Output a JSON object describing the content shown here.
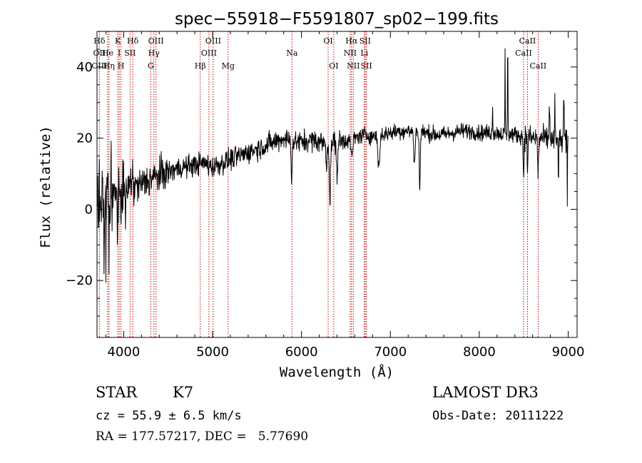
{
  "chart_data": {
    "type": "line",
    "title": "spec−55918−F5591807_sp02−199.fits",
    "xlabel": "Wavelength (Å)",
    "ylabel": "Flux (relative)",
    "xlim": [
      3700,
      9100
    ],
    "ylim": [
      -36,
      50
    ],
    "x_ticks": [
      {
        "value": 4000,
        "label": "4000"
      },
      {
        "value": 5000,
        "label": "5000"
      },
      {
        "value": 6000,
        "label": "6000"
      },
      {
        "value": 7000,
        "label": "7000"
      },
      {
        "value": 8000,
        "label": "8000"
      },
      {
        "value": 9000,
        "label": "9000"
      }
    ],
    "y_ticks": [
      {
        "value": -20,
        "label": "−20"
      },
      {
        "value": 0,
        "label": "0"
      },
      {
        "value": 20,
        "label": "20"
      },
      {
        "value": 40,
        "label": "40"
      }
    ],
    "grid": false,
    "lines": [
      {
        "name": "Hδ",
        "wavelength": 3727,
        "row": 1
      },
      {
        "name": "OII",
        "wavelength": 3727,
        "row": 2
      },
      {
        "name": "OIII",
        "wavelength": 3727,
        "row": 3
      },
      {
        "name": "He",
        "wavelength": 3820,
        "row": 2
      },
      {
        "name": "Hη",
        "wavelength": 3835,
        "row": 3
      },
      {
        "name": "K",
        "wavelength": 3934,
        "row": 1
      },
      {
        "name": "I",
        "wavelength": 3950,
        "row": 2
      },
      {
        "name": "H",
        "wavelength": 3969,
        "row": 3
      },
      {
        "name": "SII",
        "wavelength": 4072,
        "row": 2
      },
      {
        "name": "Hδ",
        "wavelength": 4102,
        "row": 1
      },
      {
        "name": "G",
        "wavelength": 4305,
        "row": 3
      },
      {
        "name": "Hγ",
        "wavelength": 4340,
        "row": 2
      },
      {
        "name": "OIII",
        "wavelength": 4363,
        "row": 1
      },
      {
        "name": "Hβ",
        "wavelength": 4861,
        "row": 3
      },
      {
        "name": "OIII",
        "wavelength": 4959,
        "row": 2
      },
      {
        "name": "OIII",
        "wavelength": 5007,
        "row": 1
      },
      {
        "name": "Mg",
        "wavelength": 5175,
        "row": 3
      },
      {
        "name": "Na",
        "wavelength": 5893,
        "row": 2
      },
      {
        "name": "OI",
        "wavelength": 6300,
        "row": 1
      },
      {
        "name": "OI",
        "wavelength": 6363,
        "row": 3
      },
      {
        "name": "NII",
        "wavelength": 6548,
        "row": 2
      },
      {
        "name": "Hα",
        "wavelength": 6563,
        "row": 1
      },
      {
        "name": "NII",
        "wavelength": 6583,
        "row": 3
      },
      {
        "name": "Li",
        "wavelength": 6707,
        "row": 2
      },
      {
        "name": "SII",
        "wavelength": 6716,
        "row": 1
      },
      {
        "name": "SII",
        "wavelength": 6730,
        "row": 3
      },
      {
        "name": "CaII",
        "wavelength": 8498,
        "row": 2
      },
      {
        "name": "CaII",
        "wavelength": 8542,
        "row": 1
      },
      {
        "name": "CaII",
        "wavelength": 8662,
        "row": 3
      }
    ],
    "spectrum_envelope": {
      "x": [
        3700,
        3800,
        3900,
        4000,
        4100,
        4200,
        4300,
        4400,
        4500,
        4600,
        4700,
        4800,
        4900,
        5000,
        5100,
        5200,
        5300,
        5400,
        5500,
        5600,
        5700,
        5800,
        5900,
        6000,
        6100,
        6200,
        6300,
        6400,
        6500,
        6600,
        6700,
        6800,
        6900,
        7000,
        7100,
        7200,
        7300,
        7400,
        7500,
        7600,
        7700,
        7800,
        7900,
        8000,
        8100,
        8200,
        8300,
        8400,
        8500,
        8600,
        8700,
        8800,
        8900,
        9000
      ],
      "y": [
        2,
        3,
        4,
        5,
        6,
        7,
        8.5,
        9.5,
        10.5,
        11.5,
        12,
        12.5,
        13,
        12,
        13,
        14,
        15,
        16,
        17,
        18,
        19,
        20,
        19,
        19,
        19.5,
        19,
        18.5,
        19,
        19.5,
        20,
        21,
        20.5,
        21,
        21.5,
        22,
        22,
        22,
        21.5,
        21,
        21,
        21.5,
        22,
        22,
        21.5,
        21.5,
        21.5,
        21,
        21,
        20.5,
        20,
        20,
        19.5,
        19,
        19
      ]
    },
    "noise_sigma": [
      {
        "to": 4000,
        "sigma": 6
      },
      {
        "to": 4500,
        "sigma": 3.5
      },
      {
        "to": 6500,
        "sigma": 2.2
      },
      {
        "to": 8500,
        "sigma": 1.6
      },
      {
        "to": 9100,
        "sigma": 2.5
      }
    ],
    "features": [
      {
        "x": 3725,
        "dy": 24,
        "w": 2
      },
      {
        "x": 3780,
        "dy": -28,
        "w": 3
      },
      {
        "x": 3800,
        "dy": -24,
        "w": 2
      },
      {
        "x": 3835,
        "dy": -20,
        "w": 3
      },
      {
        "x": 3860,
        "dy": 18,
        "w": 3
      },
      {
        "x": 3870,
        "dy": -14,
        "w": 3
      },
      {
        "x": 3930,
        "dy": -12,
        "w": 3
      },
      {
        "x": 3970,
        "dy": -10,
        "w": 3
      },
      {
        "x": 4020,
        "dy": -12,
        "w": 3
      },
      {
        "x": 4100,
        "dy": 8,
        "w": 3
      },
      {
        "x": 5890,
        "dy": -10,
        "w": 8
      },
      {
        "x": 6280,
        "dy": -6,
        "w": 8
      },
      {
        "x": 6320,
        "dy": -16,
        "w": 10
      },
      {
        "x": 6400,
        "dy": -12,
        "w": 8
      },
      {
        "x": 6565,
        "dy": -5,
        "w": 15
      },
      {
        "x": 6870,
        "dy": -9,
        "w": 15
      },
      {
        "x": 7270,
        "dy": -10,
        "w": 10
      },
      {
        "x": 7330,
        "dy": -17,
        "w": 8
      },
      {
        "x": 8150,
        "dy": 8,
        "w": 4
      },
      {
        "x": 8290,
        "dy": 23,
        "w": 3
      },
      {
        "x": 8320,
        "dy": 26,
        "w": 4
      },
      {
        "x": 8498,
        "dy": -12,
        "w": 6
      },
      {
        "x": 8542,
        "dy": -9,
        "w": 6
      },
      {
        "x": 8662,
        "dy": -10,
        "w": 8
      },
      {
        "x": 8790,
        "dy": 10,
        "w": 6
      },
      {
        "x": 8850,
        "dy": 10,
        "w": 4
      },
      {
        "x": 8890,
        "dy": -9,
        "w": 4
      },
      {
        "x": 8950,
        "dy": 12,
        "w": 6
      },
      {
        "x": 8990,
        "dy": -18,
        "w": 3
      }
    ]
  },
  "info": {
    "object_class": "STAR",
    "subclass": "K7",
    "redshift_text": "cz = 55.9 ± 6.5 km/s",
    "coords_text": "RA = 177.57217, DEC =   5.77690",
    "survey": "LAMOST DR3",
    "obs_date_text": "Obs-Date: 20111222"
  }
}
